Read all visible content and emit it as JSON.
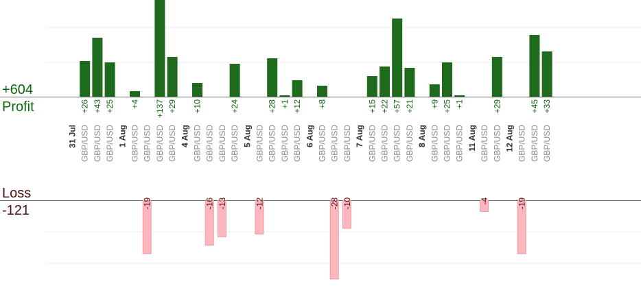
{
  "chart_data": {
    "type": "bar",
    "profit_label": "Profit",
    "profit_total": "+604",
    "loss_label": "Loss",
    "loss_total": "-121",
    "colors": {
      "profit": "#1e6b1e",
      "profit_label": "#0c6a0c",
      "loss_fill": "#ffb6bd",
      "loss_stroke": "#e79aa3",
      "pair_text": "#8a8a8a",
      "date_text": "#333333",
      "loss_title": "#4a1010"
    },
    "days": [
      {
        "date": "31 Jul",
        "trades": [
          {
            "pair": "GBP/USD",
            "value": 26
          },
          {
            "pair": "GBP/USD",
            "value": 43
          },
          {
            "pair": "GBP/USD",
            "value": 25
          }
        ]
      },
      {
        "date": "1 Aug",
        "trades": [
          {
            "pair": "GBP/USD",
            "value": 4
          },
          {
            "pair": "GBP/USD",
            "value": -19
          },
          {
            "pair": "GBP/USD",
            "value": 137
          },
          {
            "pair": "GBP/USD",
            "value": 29
          }
        ]
      },
      {
        "date": "4 Aug",
        "trades": [
          {
            "pair": "GBP/USD",
            "value": 10
          },
          {
            "pair": "GBP/USD",
            "value": -16
          },
          {
            "pair": "GBP/USD",
            "value": -13
          },
          {
            "pair": "GBP/USD",
            "value": 24
          }
        ]
      },
      {
        "date": "5 Aug",
        "trades": [
          {
            "pair": "GBP/USD",
            "value": -12
          },
          {
            "pair": "GBP/USD",
            "value": 28
          },
          {
            "pair": "GBP/USD",
            "value": 1
          },
          {
            "pair": "GBP/USD",
            "value": 12
          }
        ]
      },
      {
        "date": "6 Aug",
        "trades": [
          {
            "pair": "GBP/USD",
            "value": 8
          },
          {
            "pair": "GBP/USD",
            "value": -28
          },
          {
            "pair": "GBP/USD",
            "value": -10
          }
        ]
      },
      {
        "date": "7 Aug",
        "trades": [
          {
            "pair": "GBP/USD",
            "value": 15
          },
          {
            "pair": "GBP/USD",
            "value": 22
          },
          {
            "pair": "GBP/USD",
            "value": 57
          },
          {
            "pair": "GBP/USD",
            "value": 21
          }
        ]
      },
      {
        "date": "8 Aug",
        "trades": [
          {
            "pair": "GBP/USD",
            "value": 9
          },
          {
            "pair": "GBP/USD",
            "value": 25
          },
          {
            "pair": "GBP/USD",
            "value": 1
          }
        ]
      },
      {
        "date": "11 Aug",
        "trades": [
          {
            "pair": "GBP/USD",
            "value": -4
          },
          {
            "pair": "GBP/USD",
            "value": 29
          }
        ]
      },
      {
        "date": "12 Aug",
        "trades": [
          {
            "pair": "GBP/USD",
            "value": -19
          },
          {
            "pair": "GBP/USD",
            "value": 45
          },
          {
            "pair": "GBP/USD",
            "value": 33
          }
        ]
      }
    ]
  }
}
